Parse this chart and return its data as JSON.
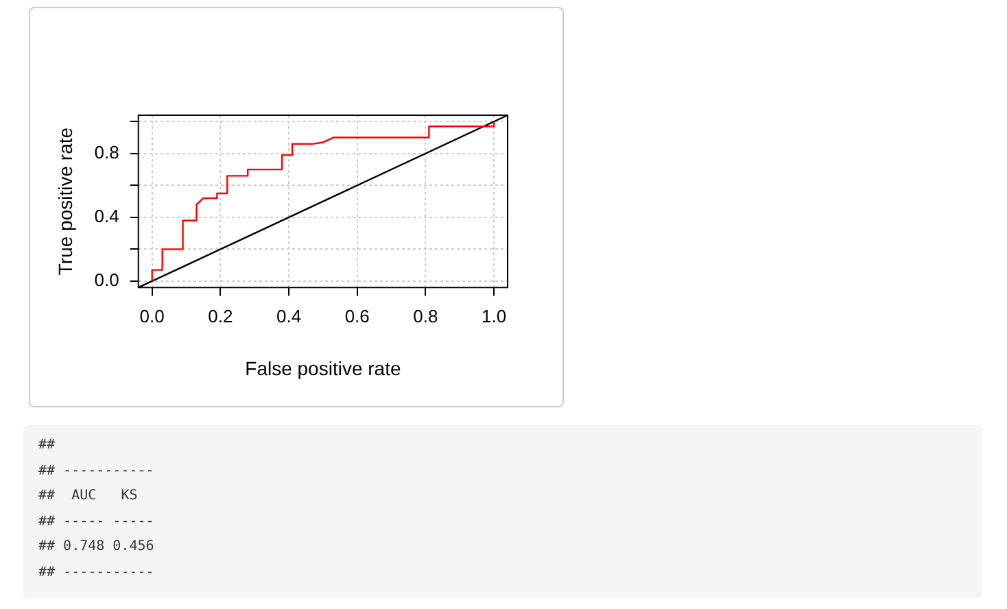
{
  "chart_data": {
    "type": "line",
    "xlabel": "False positive rate",
    "ylabel": "True positive rate",
    "xlim": [
      -0.04,
      1.04
    ],
    "ylim": [
      -0.04,
      1.04
    ],
    "xticks": [
      {
        "value": 0,
        "label": "0.0"
      },
      0.2,
      0.4,
      0.6,
      0.8,
      {
        "value": 1,
        "label": "1.0"
      }
    ],
    "yticks": [
      {
        "value": 0,
        "label": "0.0"
      },
      {
        "value": 0.2,
        "label": null
      },
      0.4,
      {
        "value": 0.6,
        "label": null
      },
      0.8,
      {
        "value": 1,
        "label": null
      }
    ],
    "grid": true,
    "legend": false,
    "marker": "none",
    "line_style": "solid",
    "series": [
      {
        "color": "#ff0000",
        "x": [
          0,
          0,
          0.03,
          0.03,
          0.09,
          0.09,
          0.13,
          0.13,
          0.15,
          0.19,
          0.19,
          0.22,
          0.22,
          0.28,
          0.28,
          0.38,
          0.38,
          0.41,
          0.41,
          0.47,
          0.5,
          0.53,
          0.81,
          0.81,
          1.0,
          1.0
        ],
        "values": [
          0,
          0.07,
          0.07,
          0.2,
          0.2,
          0.38,
          0.38,
          0.48,
          0.52,
          0.52,
          0.55,
          0.55,
          0.66,
          0.66,
          0.7,
          0.7,
          0.79,
          0.79,
          0.86,
          0.86,
          0.87,
          0.9,
          0.9,
          0.97,
          0.97,
          1.0
        ]
      },
      {
        "color": "#000000",
        "x": [
          -0.04,
          1.04
        ],
        "values": [
          -0.04,
          1.04
        ]
      }
    ],
    "annotations": [
      "##",
      "## -----------",
      "##  AUC   KS",
      "## ----- -----",
      "## 0.748 0.456",
      "## -----------"
    ]
  }
}
